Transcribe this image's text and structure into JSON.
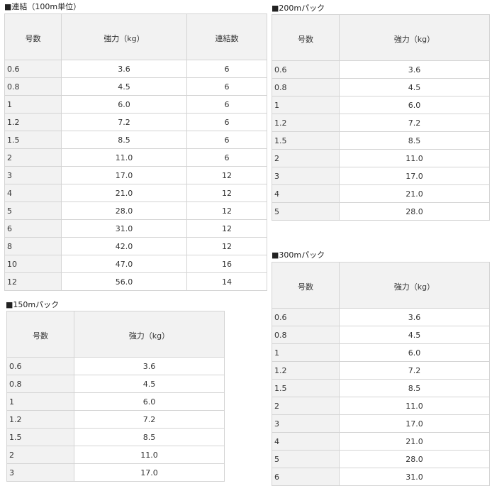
{
  "tables": [
    {
      "title": "■連結（100m単位）",
      "headers": [
        "号数",
        "強力（kg）",
        "連結数"
      ],
      "rows": [
        [
          "0.6",
          "3.6",
          "6"
        ],
        [
          "0.8",
          "4.5",
          "6"
        ],
        [
          "1",
          "6.0",
          "6"
        ],
        [
          "1.2",
          "7.2",
          "6"
        ],
        [
          "1.5",
          "8.5",
          "6"
        ],
        [
          "2",
          "11.0",
          "6"
        ],
        [
          "3",
          "17.0",
          "12"
        ],
        [
          "4",
          "21.0",
          "12"
        ],
        [
          "5",
          "28.0",
          "12"
        ],
        [
          "6",
          "31.0",
          "12"
        ],
        [
          "8",
          "42.0",
          "12"
        ],
        [
          "10",
          "47.0",
          "16"
        ],
        [
          "12",
          "56.0",
          "14"
        ]
      ]
    },
    {
      "title": "■200mパック",
      "headers": [
        "号数",
        "強力（kg）"
      ],
      "rows": [
        [
          "0.6",
          "3.6"
        ],
        [
          "0.8",
          "4.5"
        ],
        [
          "1",
          "6.0"
        ],
        [
          "1.2",
          "7.2"
        ],
        [
          "1.5",
          "8.5"
        ],
        [
          "2",
          "11.0"
        ],
        [
          "3",
          "17.0"
        ],
        [
          "4",
          "21.0"
        ],
        [
          "5",
          "28.0"
        ]
      ]
    },
    {
      "title": "■150mパック",
      "headers": [
        "号数",
        "強力（kg）"
      ],
      "rows": [
        [
          "0.6",
          "3.6"
        ],
        [
          "0.8",
          "4.5"
        ],
        [
          "1",
          "6.0"
        ],
        [
          "1.2",
          "7.2"
        ],
        [
          "1.5",
          "8.5"
        ],
        [
          "2",
          "11.0"
        ],
        [
          "3",
          "17.0"
        ]
      ]
    },
    {
      "title": "■300mパック",
      "headers": [
        "号数",
        "強力（kg）"
      ],
      "rows": [
        [
          "0.6",
          "3.6"
        ],
        [
          "0.8",
          "4.5"
        ],
        [
          "1",
          "6.0"
        ],
        [
          "1.2",
          "7.2"
        ],
        [
          "1.5",
          "8.5"
        ],
        [
          "2",
          "11.0"
        ],
        [
          "3",
          "17.0"
        ],
        [
          "4",
          "21.0"
        ],
        [
          "5",
          "28.0"
        ],
        [
          "6",
          "31.0"
        ]
      ]
    }
  ]
}
